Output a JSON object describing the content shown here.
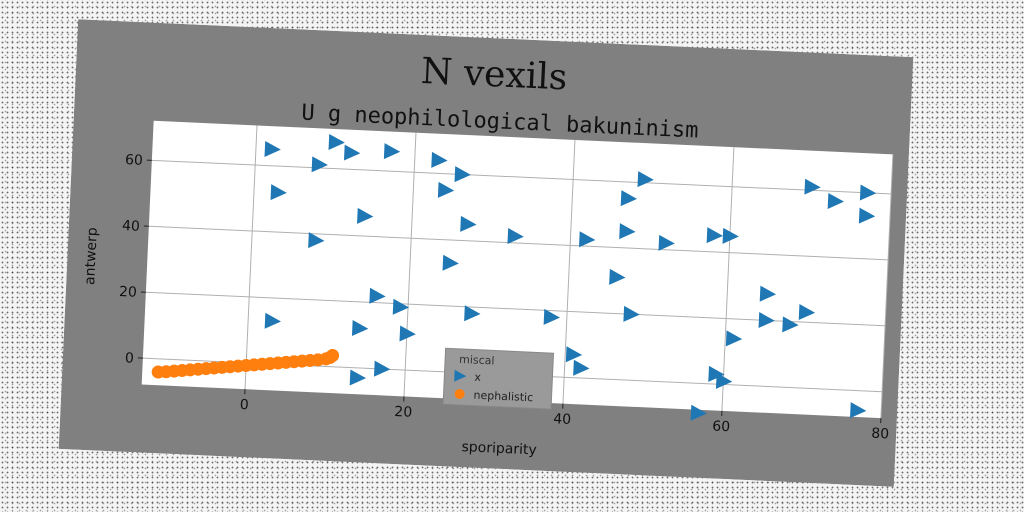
{
  "figure": {
    "suptitle": "N vexils",
    "colors": {
      "figure_bg": "#808080",
      "plot_bg": "#ffffff",
      "grid": "#b0b0b0"
    }
  },
  "chart_data": {
    "type": "scatter",
    "title": "U g neophilological bakuninism",
    "xlabel": "sporiparity",
    "ylabel": "antwerp",
    "xlim": [
      -13,
      80
    ],
    "ylim": [
      -8,
      72
    ],
    "xticks": [
      0,
      20,
      40,
      60,
      80
    ],
    "yticks": [
      0,
      20,
      40,
      60
    ],
    "grid": true,
    "legend": {
      "title": "miscal",
      "position": "lower-center"
    },
    "series": [
      {
        "name": "x",
        "marker": "triangle-right",
        "color": "#1f77b4",
        "points": [
          [
            2,
            65
          ],
          [
            10,
            68
          ],
          [
            8,
            61
          ],
          [
            12,
            65
          ],
          [
            17,
            66
          ],
          [
            23,
            64
          ],
          [
            26,
            60
          ],
          [
            24,
            55
          ],
          [
            49,
            61
          ],
          [
            70,
            61
          ],
          [
            73,
            57
          ],
          [
            77,
            60
          ],
          [
            77,
            53
          ],
          [
            3,
            52
          ],
          [
            47,
            55
          ],
          [
            14,
            46
          ],
          [
            27,
            45
          ],
          [
            33,
            42
          ],
          [
            42,
            42
          ],
          [
            47,
            45
          ],
          [
            52,
            42
          ],
          [
            58,
            45
          ],
          [
            60,
            45
          ],
          [
            8,
            38
          ],
          [
            25,
            33
          ],
          [
            46,
            31
          ],
          [
            65,
            28
          ],
          [
            16,
            22
          ],
          [
            19,
            19
          ],
          [
            28,
            18
          ],
          [
            38,
            18
          ],
          [
            48,
            20
          ],
          [
            65,
            20
          ],
          [
            68,
            19
          ],
          [
            70,
            23
          ],
          [
            3,
            13
          ],
          [
            14,
            12
          ],
          [
            20,
            11
          ],
          [
            61,
            14
          ],
          [
            41,
            7
          ],
          [
            42,
            3
          ],
          [
            59,
            3
          ],
          [
            60,
            1
          ],
          [
            17,
            0
          ],
          [
            14,
            -3
          ],
          [
            57,
            -9
          ],
          [
            77,
            -6
          ]
        ]
      },
      {
        "name": "nephalistic",
        "marker": "circle",
        "color": "#ff7f0e",
        "points": [
          [
            -11.0,
            -4.0
          ],
          [
            -10.0,
            -3.8
          ],
          [
            -9.0,
            -3.5
          ],
          [
            -8.0,
            -3.2
          ],
          [
            -7.0,
            -2.9
          ],
          [
            -6.0,
            -2.6
          ],
          [
            -5.0,
            -2.3
          ],
          [
            -4.0,
            -2.0
          ],
          [
            -3.0,
            -1.7
          ],
          [
            -2.0,
            -1.4
          ],
          [
            -1.0,
            -1.1
          ],
          [
            0.0,
            -0.8
          ],
          [
            1.0,
            -0.5
          ],
          [
            2.0,
            -0.2
          ],
          [
            3.0,
            0.1
          ],
          [
            4.0,
            0.4
          ],
          [
            5.0,
            0.7
          ],
          [
            6.0,
            1.0
          ],
          [
            7.0,
            1.3
          ],
          [
            8.0,
            1.6
          ],
          [
            9.0,
            1.9
          ],
          [
            10.0,
            2.3
          ],
          [
            10.5,
            2.8
          ],
          [
            10.8,
            3.4
          ]
        ]
      }
    ]
  }
}
